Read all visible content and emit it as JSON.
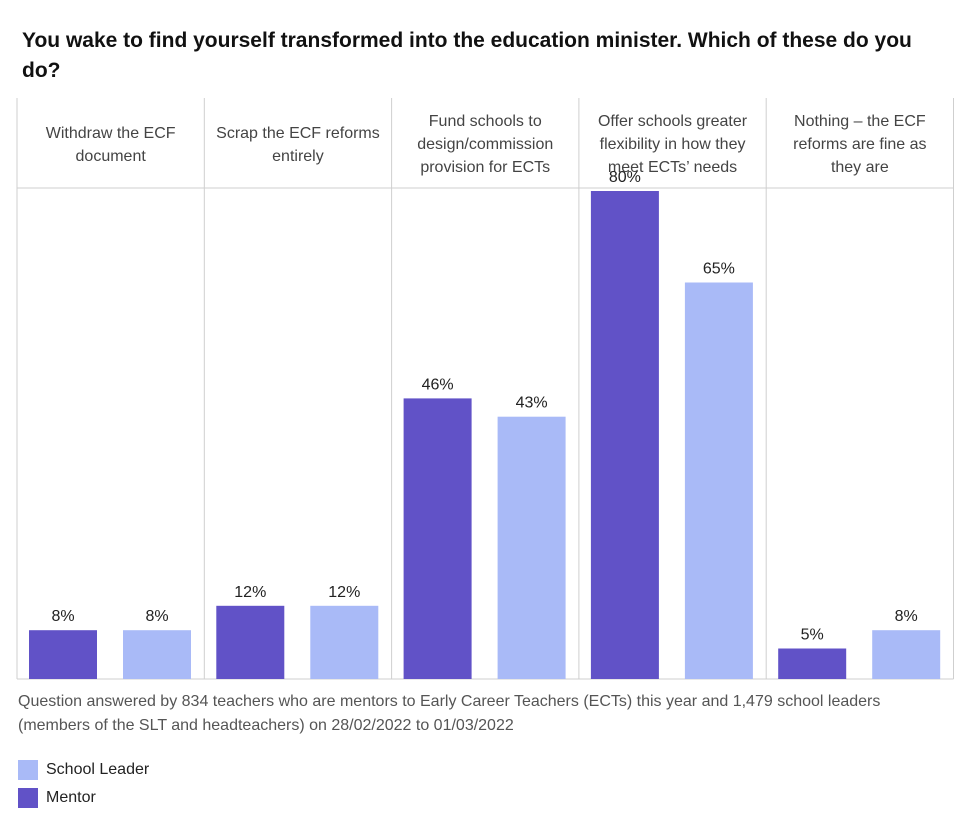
{
  "chart_data": {
    "type": "bar",
    "title": "You wake to find yourself transformed into the education minister. Which of these do you do?",
    "categories": [
      [
        "Withdraw the ECF",
        "document"
      ],
      [
        "Scrap the ECF reforms",
        "entirely"
      ],
      [
        "Fund schools to",
        "design/commission",
        "provision for ECTs"
      ],
      [
        "Offer schools greater",
        "flexibility in how they",
        "meet ECTs’ needs"
      ],
      [
        "Nothing – the ECF",
        "reforms are fine as",
        "they are"
      ]
    ],
    "series": [
      {
        "name": "Mentor",
        "color": "#6152c7",
        "values": [
          8,
          12,
          46,
          80,
          5
        ],
        "labels": [
          "8%",
          "12%",
          "46%",
          "80%",
          "5%"
        ]
      },
      {
        "name": "School Leader",
        "color": "#a9baf7",
        "values": [
          8,
          12,
          43,
          65,
          8
        ],
        "labels": [
          "8%",
          "12%",
          "43%",
          "65%",
          "8%"
        ]
      }
    ],
    "ylim": [
      0,
      100
    ],
    "xlabel": "",
    "ylabel": "",
    "grid": false,
    "legend": "bottom-left"
  },
  "footnote": "Question answered by 834 teachers who are mentors to Early Career Teachers (ECTs) this year and 1,479 school leaders (members of the SLT and headteachers) on 28/02/2022 to 01/03/2022",
  "legend": {
    "items": [
      {
        "label": "School Leader",
        "color": "#a9baf7"
      },
      {
        "label": "Mentor",
        "color": "#6152c7"
      }
    ]
  }
}
